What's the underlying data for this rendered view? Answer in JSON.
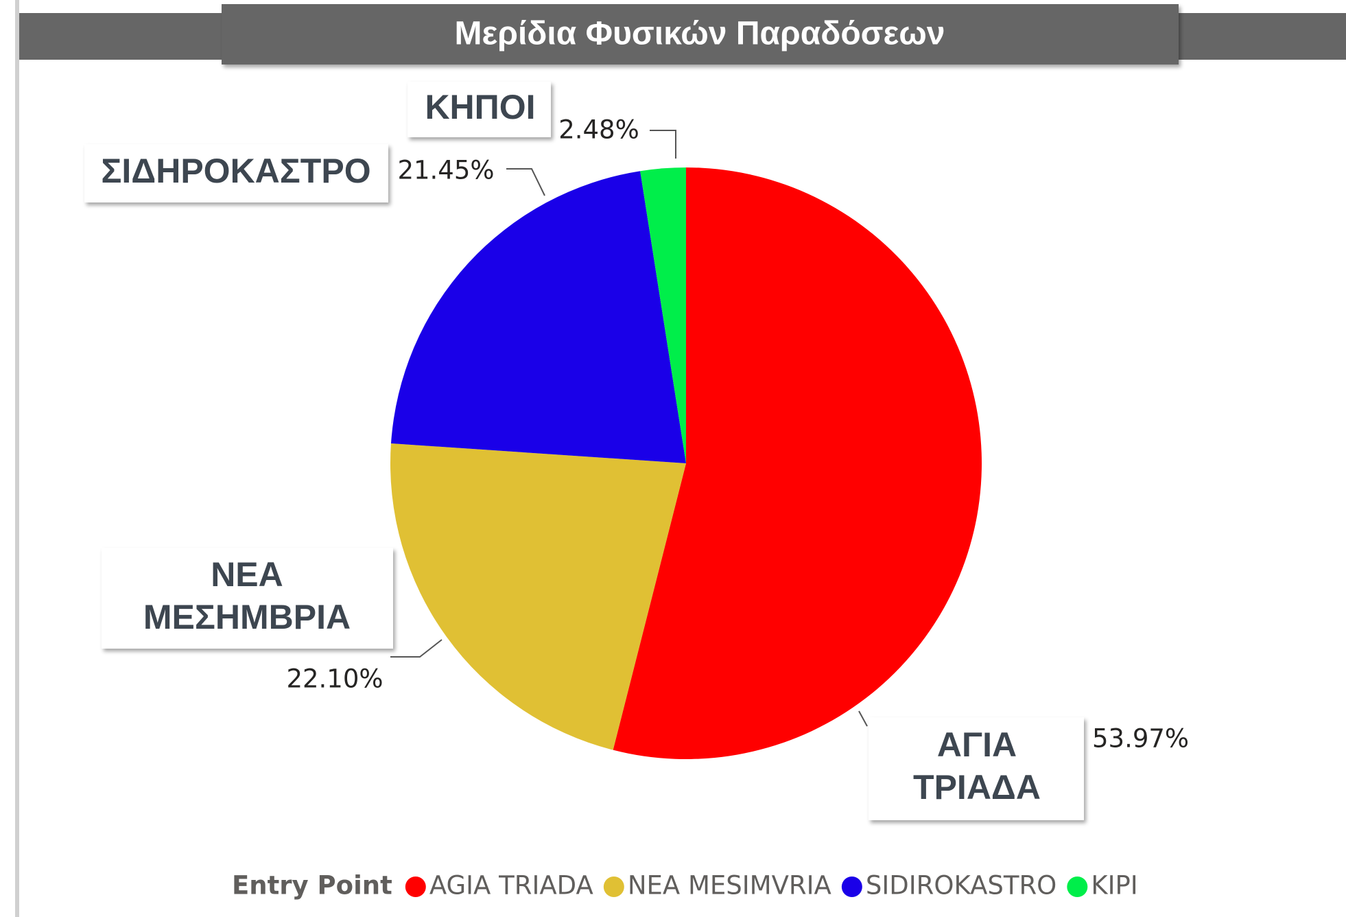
{
  "chart_data": {
    "type": "pie",
    "title": "Μερίδια Φυσικών Παραδόσεων",
    "categories": [
      "AGIA TRIADA",
      "NEA MESIMVRIA",
      "SIDIROKASTRO",
      "KIPI"
    ],
    "values": [
      53.97,
      22.1,
      21.45,
      2.48
    ],
    "value_labels": [
      "53.97%",
      "22.10%",
      "21.45%",
      "2.48%"
    ],
    "colors": [
      "#ff0000",
      "#e0c034",
      "#1a00e8",
      "#00ee4a"
    ],
    "annotations": [
      [
        "ΑΓΙΑ",
        "ΤΡΙΑΔΑ"
      ],
      [
        "ΝΕΑ",
        "ΜΕΣΗΜΒΡΙΑ"
      ],
      [
        "ΣΙΔΗΡΟΚΑΣΤΡΟ"
      ],
      [
        "ΚΗΠΟΙ"
      ]
    ],
    "legend_title": "Entry Point",
    "legend": "bottom"
  }
}
